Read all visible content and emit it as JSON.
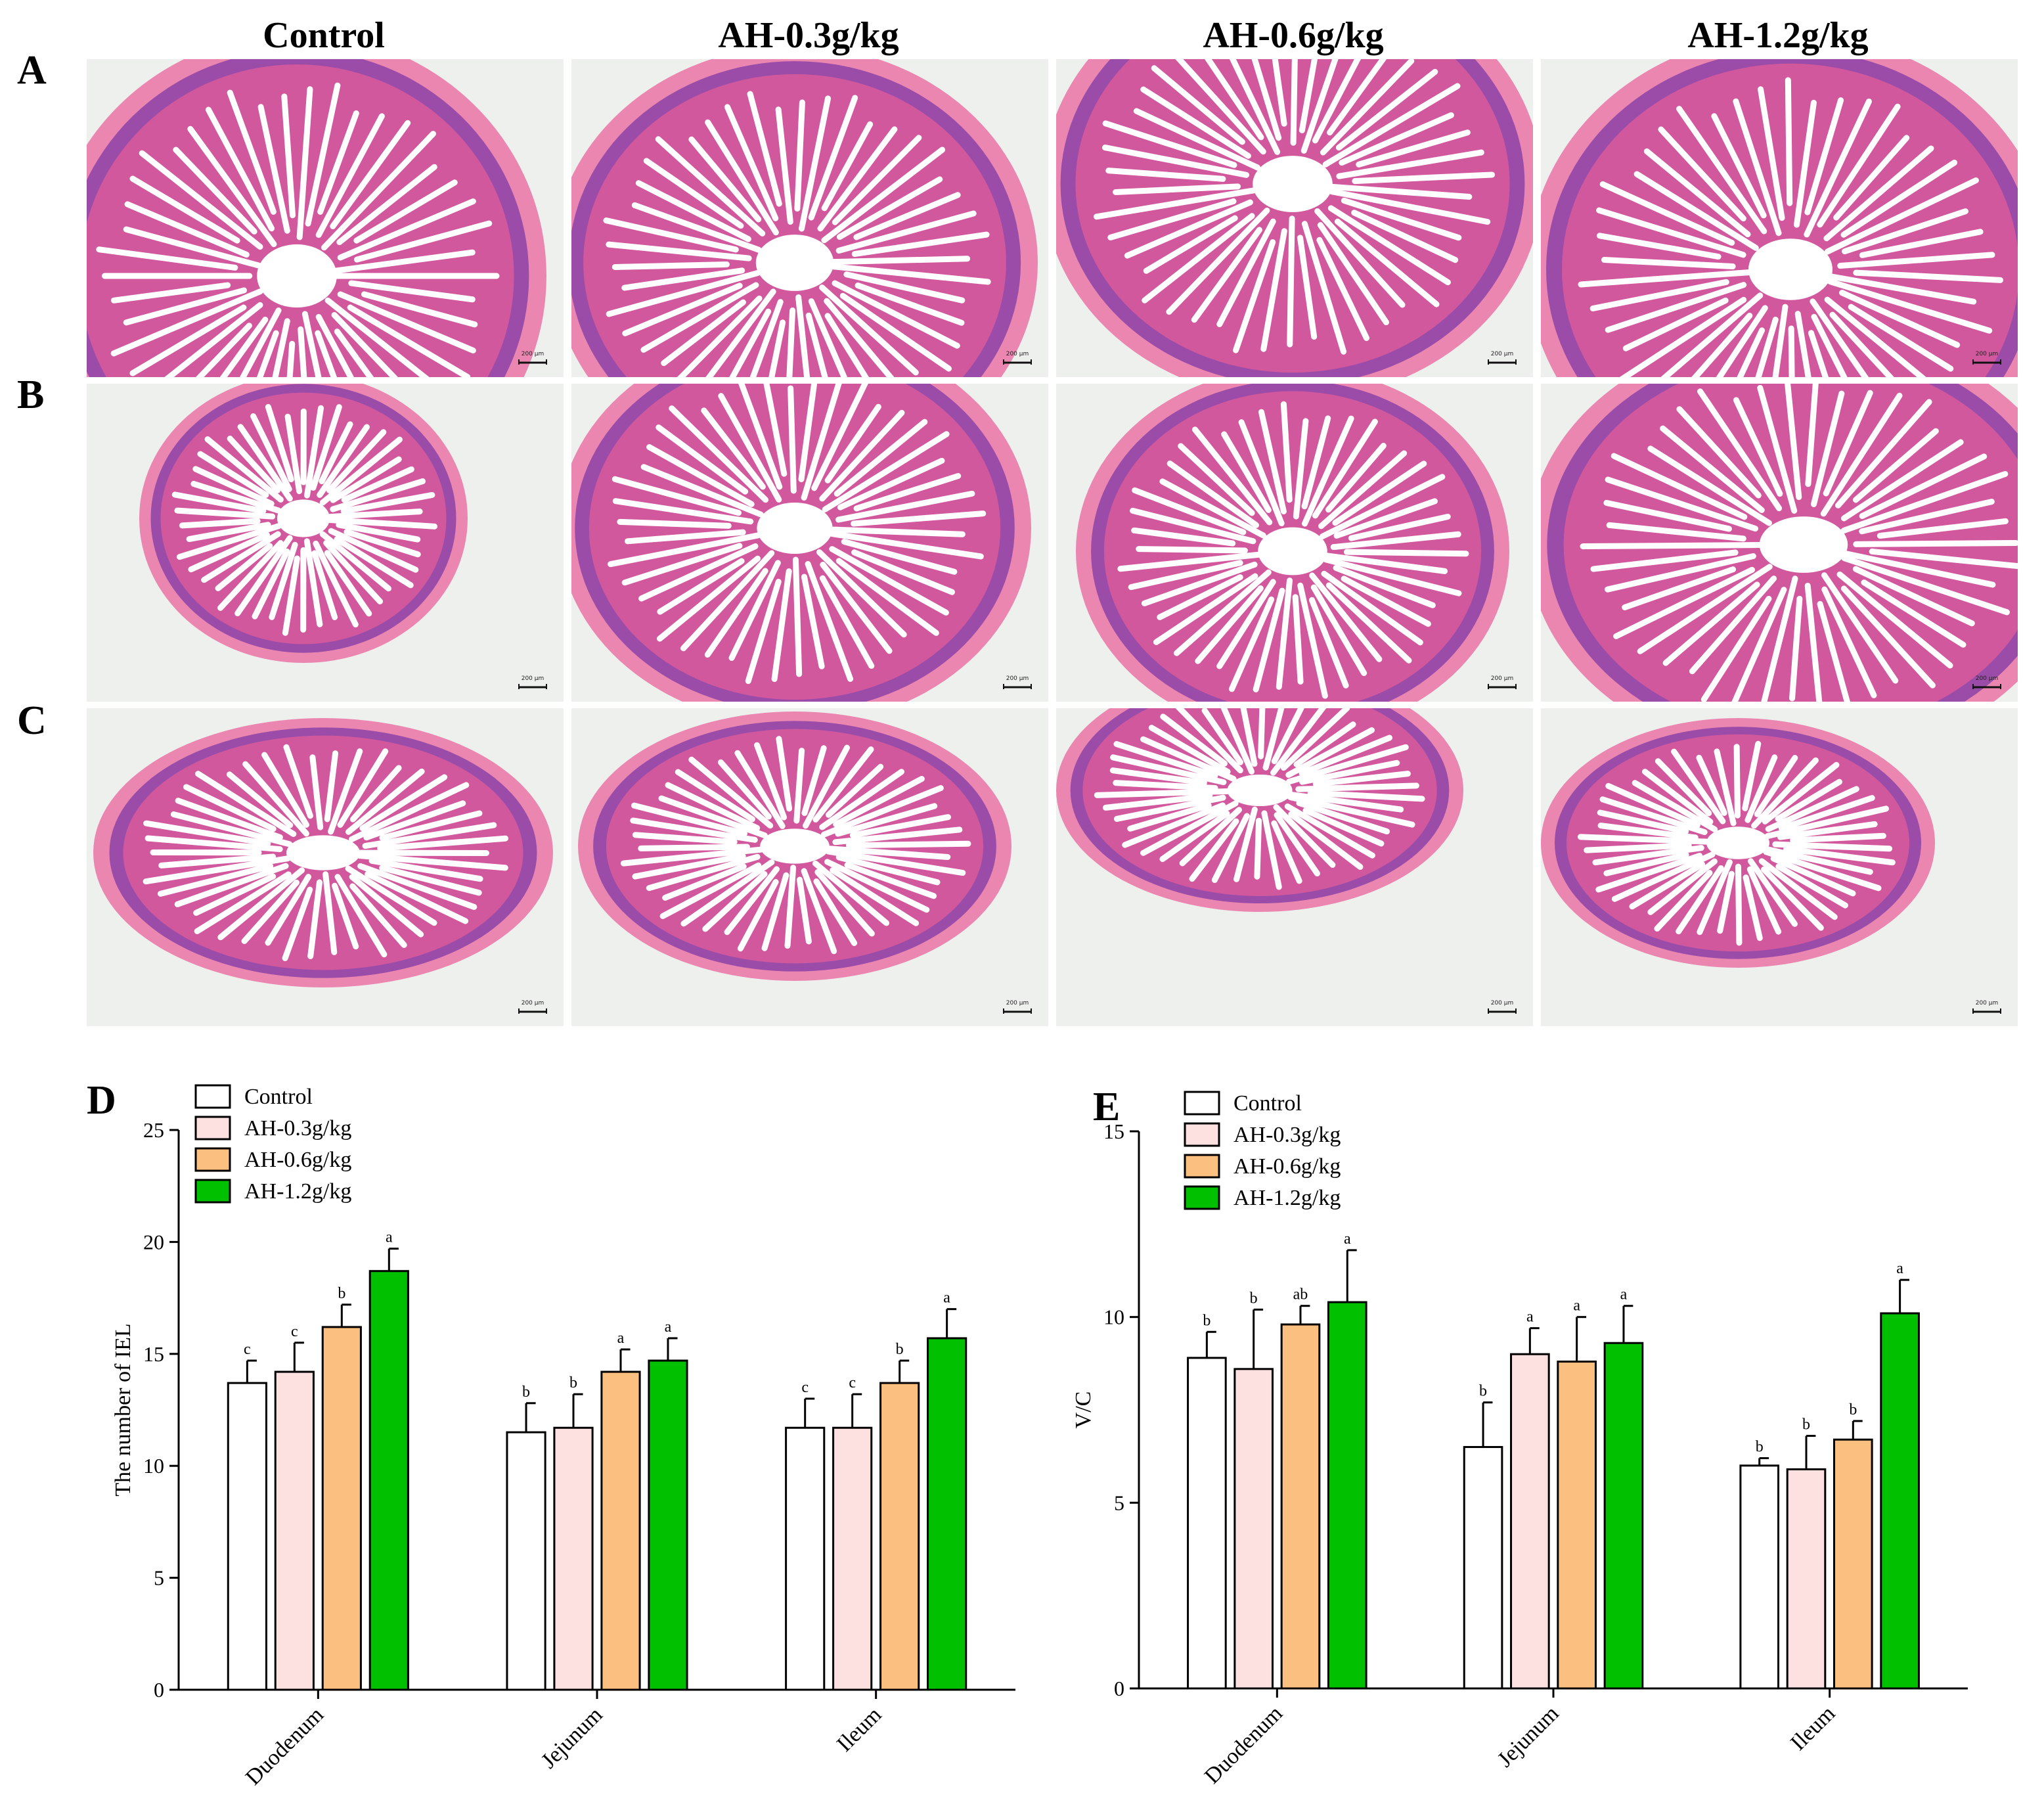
{
  "groups": [
    "Control",
    "AH-0.3g/kg",
    "AH-0.6g/kg",
    "AH-1.2g/kg"
  ],
  "row_labels": [
    "A",
    "B",
    "C"
  ],
  "scale_text": "200 μm",
  "colors": {
    "control": "#ffffff",
    "ah03": "#fde1e1",
    "ah06": "#fbbf80",
    "ah12": "#00c000",
    "tissue": "#d2589e",
    "tissue_dark": "#9a4ca8",
    "muscle": "#ea86b0"
  },
  "chart_data": [
    {
      "panel_label": "D",
      "type": "bar",
      "title": "",
      "xlabel": "",
      "ylabel": "The number of IEL",
      "categories": [
        "Duodenum",
        "Jejunum",
        "Ileum"
      ],
      "ylim": [
        0,
        25
      ],
      "yticks": [
        0,
        5,
        10,
        15,
        20,
        25
      ],
      "legend": "top-left",
      "series": [
        {
          "name": "Control",
          "color": "#ffffff",
          "values": [
            13.7,
            11.5,
            11.7
          ],
          "errors": [
            1.0,
            1.3,
            1.3
          ],
          "letters": [
            "c",
            "b",
            "c"
          ]
        },
        {
          "name": "AH-0.3g/kg",
          "color": "#fde1e1",
          "values": [
            14.2,
            11.7,
            11.7
          ],
          "errors": [
            1.3,
            1.5,
            1.5
          ],
          "letters": [
            "c",
            "b",
            "c"
          ]
        },
        {
          "name": "AH-0.6g/kg",
          "color": "#fbbf80",
          "values": [
            16.2,
            14.2,
            13.7
          ],
          "errors": [
            1.0,
            1.0,
            1.0
          ],
          "letters": [
            "b",
            "a",
            "b"
          ]
        },
        {
          "name": "AH-1.2g/kg",
          "color": "#00c000",
          "values": [
            18.7,
            14.7,
            15.7
          ],
          "errors": [
            1.0,
            1.0,
            1.3
          ],
          "letters": [
            "a",
            "a",
            "a"
          ]
        }
      ]
    },
    {
      "panel_label": "E",
      "type": "bar",
      "title": "",
      "xlabel": "",
      "ylabel": "V/C",
      "categories": [
        "Duodenum",
        "Jejunum",
        "Ileum"
      ],
      "ylim": [
        0,
        15
      ],
      "yticks": [
        0,
        5,
        10,
        15
      ],
      "legend": "top-left",
      "series": [
        {
          "name": "Control",
          "color": "#ffffff",
          "values": [
            8.9,
            6.5,
            6.0
          ],
          "errors": [
            0.7,
            1.2,
            0.2
          ],
          "letters": [
            "b",
            "b",
            "b"
          ]
        },
        {
          "name": "AH-0.3g/kg",
          "color": "#fde1e1",
          "values": [
            8.6,
            9.0,
            5.9
          ],
          "errors": [
            1.6,
            0.7,
            0.9
          ],
          "letters": [
            "b",
            "a",
            "b"
          ]
        },
        {
          "name": "AH-0.6g/kg",
          "color": "#fbbf80",
          "values": [
            9.8,
            8.8,
            6.7
          ],
          "errors": [
            0.5,
            1.2,
            0.5
          ],
          "letters": [
            "ab",
            "a",
            "b"
          ]
        },
        {
          "name": "AH-1.2g/kg",
          "color": "#00c000",
          "values": [
            10.4,
            9.3,
            10.1
          ],
          "errors": [
            1.4,
            1.0,
            0.9
          ],
          "letters": [
            "a",
            "a",
            "a"
          ]
        }
      ]
    }
  ]
}
